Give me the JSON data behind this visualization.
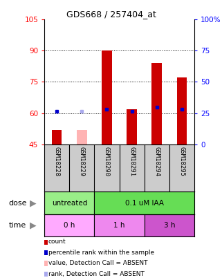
{
  "title": "GDS668 / 257404_at",
  "samples": [
    "GSM18228",
    "GSM18229",
    "GSM18290",
    "GSM18291",
    "GSM18294",
    "GSM18295"
  ],
  "count_values": [
    52,
    null,
    90,
    62,
    84,
    77
  ],
  "blue_dot_values": [
    61,
    null,
    62,
    61,
    63,
    62
  ],
  "absent_value_bars": [
    null,
    52,
    null,
    null,
    null,
    null
  ],
  "absent_rank_dots": [
    null,
    61,
    null,
    null,
    null,
    null
  ],
  "ylim_left": [
    45,
    105
  ],
  "ylim_right": [
    0,
    100
  ],
  "yticks_left": [
    45,
    60,
    75,
    90,
    105
  ],
  "yticks_right": [
    0,
    25,
    50,
    75,
    100
  ],
  "bar_bottom": 45,
  "red_color": "#cc0000",
  "blue_color": "#0000cc",
  "absent_bar_color": "#ffb3b3",
  "absent_rank_color": "#aaaaee",
  "dose_groups": [
    {
      "label": "untreated",
      "start": 0,
      "end": 2,
      "color": "#99ee88"
    },
    {
      "label": "0.1 uM IAA",
      "start": 2,
      "end": 6,
      "color": "#66dd55"
    }
  ],
  "time_groups": [
    {
      "label": "0 h",
      "start": 0,
      "end": 2,
      "color": "#ffaaff"
    },
    {
      "label": "1 h",
      "start": 2,
      "end": 4,
      "color": "#ee88ee"
    },
    {
      "label": "3 h",
      "start": 4,
      "end": 6,
      "color": "#cc55cc"
    }
  ],
  "dose_label": "dose",
  "time_label": "time",
  "legend_items": [
    {
      "color": "#cc0000",
      "label": "count"
    },
    {
      "color": "#0000cc",
      "label": "percentile rank within the sample"
    },
    {
      "color": "#ffb3b3",
      "label": "value, Detection Call = ABSENT"
    },
    {
      "color": "#aaaaee",
      "label": "rank, Detection Call = ABSENT"
    }
  ],
  "bg_color": "#ffffff",
  "sample_box_color": "#cccccc",
  "grid_yticks": [
    60,
    75,
    90
  ]
}
